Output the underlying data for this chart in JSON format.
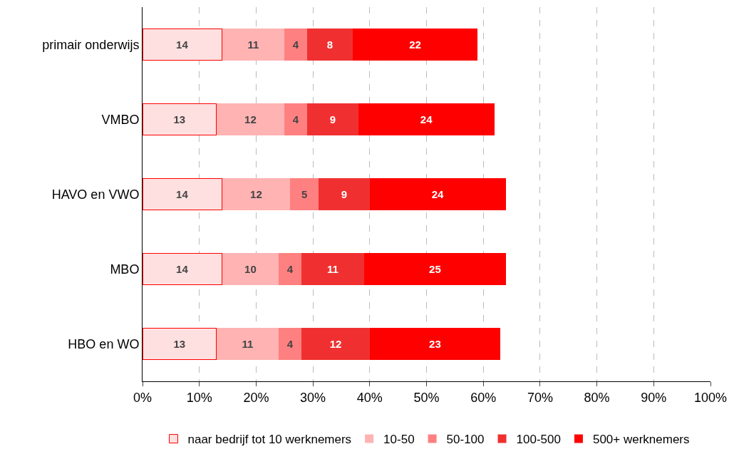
{
  "chart_data": {
    "type": "bar",
    "orientation": "horizontal",
    "stacked": true,
    "data_labels": true,
    "grid": "x",
    "legend": "bottom",
    "categories": [
      "primair onderwijs",
      "VMBO",
      "HAVO en VWO",
      "MBO",
      "HBO en WO"
    ],
    "series": [
      {
        "name": "naar bedrijf tot 10 werknemers",
        "color": "#ffe0e0",
        "values": [
          14,
          13,
          14,
          14,
          13
        ]
      },
      {
        "name": "10-50",
        "color": "#ffb3b3",
        "values": [
          11,
          12,
          12,
          10,
          11
        ]
      },
      {
        "name": "50-100",
        "color": "#ff8080",
        "values": [
          4,
          4,
          5,
          4,
          4
        ]
      },
      {
        "name": "100-500",
        "color": "#f03030",
        "values": [
          8,
          9,
          9,
          11,
          12
        ]
      },
      {
        "name": "500+ werknemers",
        "color": "#ff0000",
        "values": [
          22,
          24,
          24,
          25,
          23
        ]
      }
    ],
    "xlim": [
      0,
      100
    ],
    "xticks": [
      {
        "value": 0,
        "label": "0%"
      },
      {
        "value": 10,
        "label": "10%"
      },
      {
        "value": 20,
        "label": "20%"
      },
      {
        "value": 30,
        "label": "30%"
      },
      {
        "value": 40,
        "label": "40%"
      },
      {
        "value": 50,
        "label": "50%"
      },
      {
        "value": 60,
        "label": "60%"
      },
      {
        "value": 70,
        "label": "70%"
      },
      {
        "value": 80,
        "label": "80%"
      },
      {
        "value": 90,
        "label": "90%"
      },
      {
        "value": 100,
        "label": "100%"
      }
    ]
  }
}
